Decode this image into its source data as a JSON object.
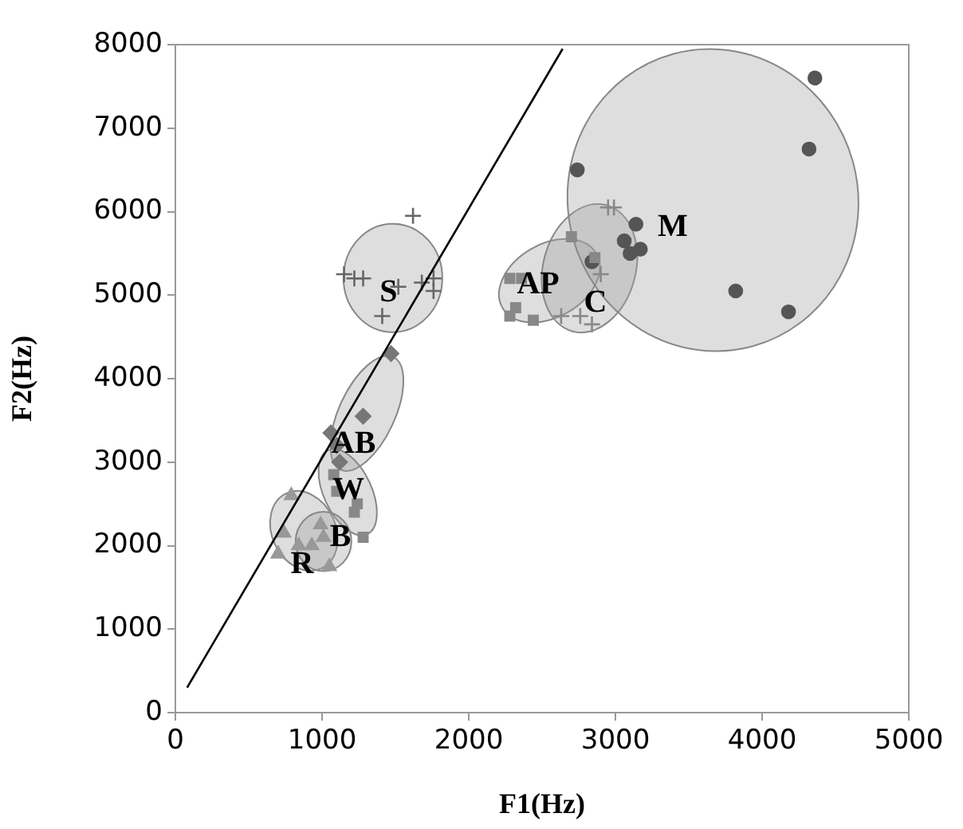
{
  "chart_data": {
    "type": "scatter",
    "xlabel": "F1(Hz)",
    "ylabel": "F2(Hz)",
    "xlim": [
      0,
      5000
    ],
    "xticks": [
      0,
      1000,
      2000,
      3000,
      4000,
      5000
    ],
    "ylim": [
      0,
      8000
    ],
    "yticks": [
      0,
      1000,
      2000,
      3000,
      4000,
      5000,
      6000,
      7000,
      8000
    ],
    "grid": false,
    "series": [
      {
        "color": "#666666",
        "marker": "cross",
        "x": [
          1620,
          1150,
          1220,
          1280,
          1410,
          1680,
          1760,
          1760,
          1520
        ],
        "values": [
          5950,
          5250,
          5200,
          5200,
          4750,
          5150,
          5200,
          5050,
          5100
        ]
      },
      {
        "color": "#777777",
        "marker": "diamond",
        "x": [
          1470,
          1280,
          1060,
          1100,
          1120
        ],
        "values": [
          4300,
          3550,
          3350,
          3200,
          3000
        ]
      },
      {
        "color": "#888888",
        "marker": "square",
        "x": [
          1080,
          1220,
          1240,
          1280,
          1100
        ],
        "values": [
          2850,
          2400,
          2500,
          2100,
          2650
        ]
      },
      {
        "color": "#999999",
        "marker": "triangle",
        "x": [
          790,
          740,
          700,
          840
        ],
        "values": [
          2600,
          2150,
          1900,
          2000
        ]
      },
      {
        "color": "#999999",
        "marker": "triangle",
        "x": [
          990,
          1010,
          1050,
          930
        ],
        "values": [
          2250,
          2100,
          1750,
          2000
        ]
      },
      {
        "color": "#888888",
        "marker": "square",
        "x": [
          2280,
          2360,
          2280,
          2320,
          2440,
          2700,
          2860
        ],
        "values": [
          5200,
          5200,
          4750,
          4850,
          4700,
          5700,
          5450
        ]
      },
      {
        "color": "#888888",
        "marker": "cross",
        "x": [
          2950,
          2990,
          2630,
          2760,
          2840,
          2900
        ],
        "values": [
          6050,
          6050,
          4750,
          4750,
          4650,
          5250
        ]
      },
      {
        "color": "#555555",
        "marker": "circle",
        "x": [
          4360,
          4320,
          2740,
          3140,
          3060,
          3100,
          3170,
          3820,
          4180,
          2840
        ],
        "values": [
          7600,
          6750,
          6500,
          5850,
          5650,
          5500,
          5550,
          5050,
          4800,
          5400
        ]
      },
      {
        "type": "line",
        "color": "#000000",
        "marker": "none",
        "x": [
          80,
          2640
        ],
        "values": [
          300,
          7950
        ]
      }
    ],
    "annotations": [
      "S",
      "AB",
      "W",
      "B",
      "R",
      "AP",
      "C",
      "M"
    ]
  }
}
